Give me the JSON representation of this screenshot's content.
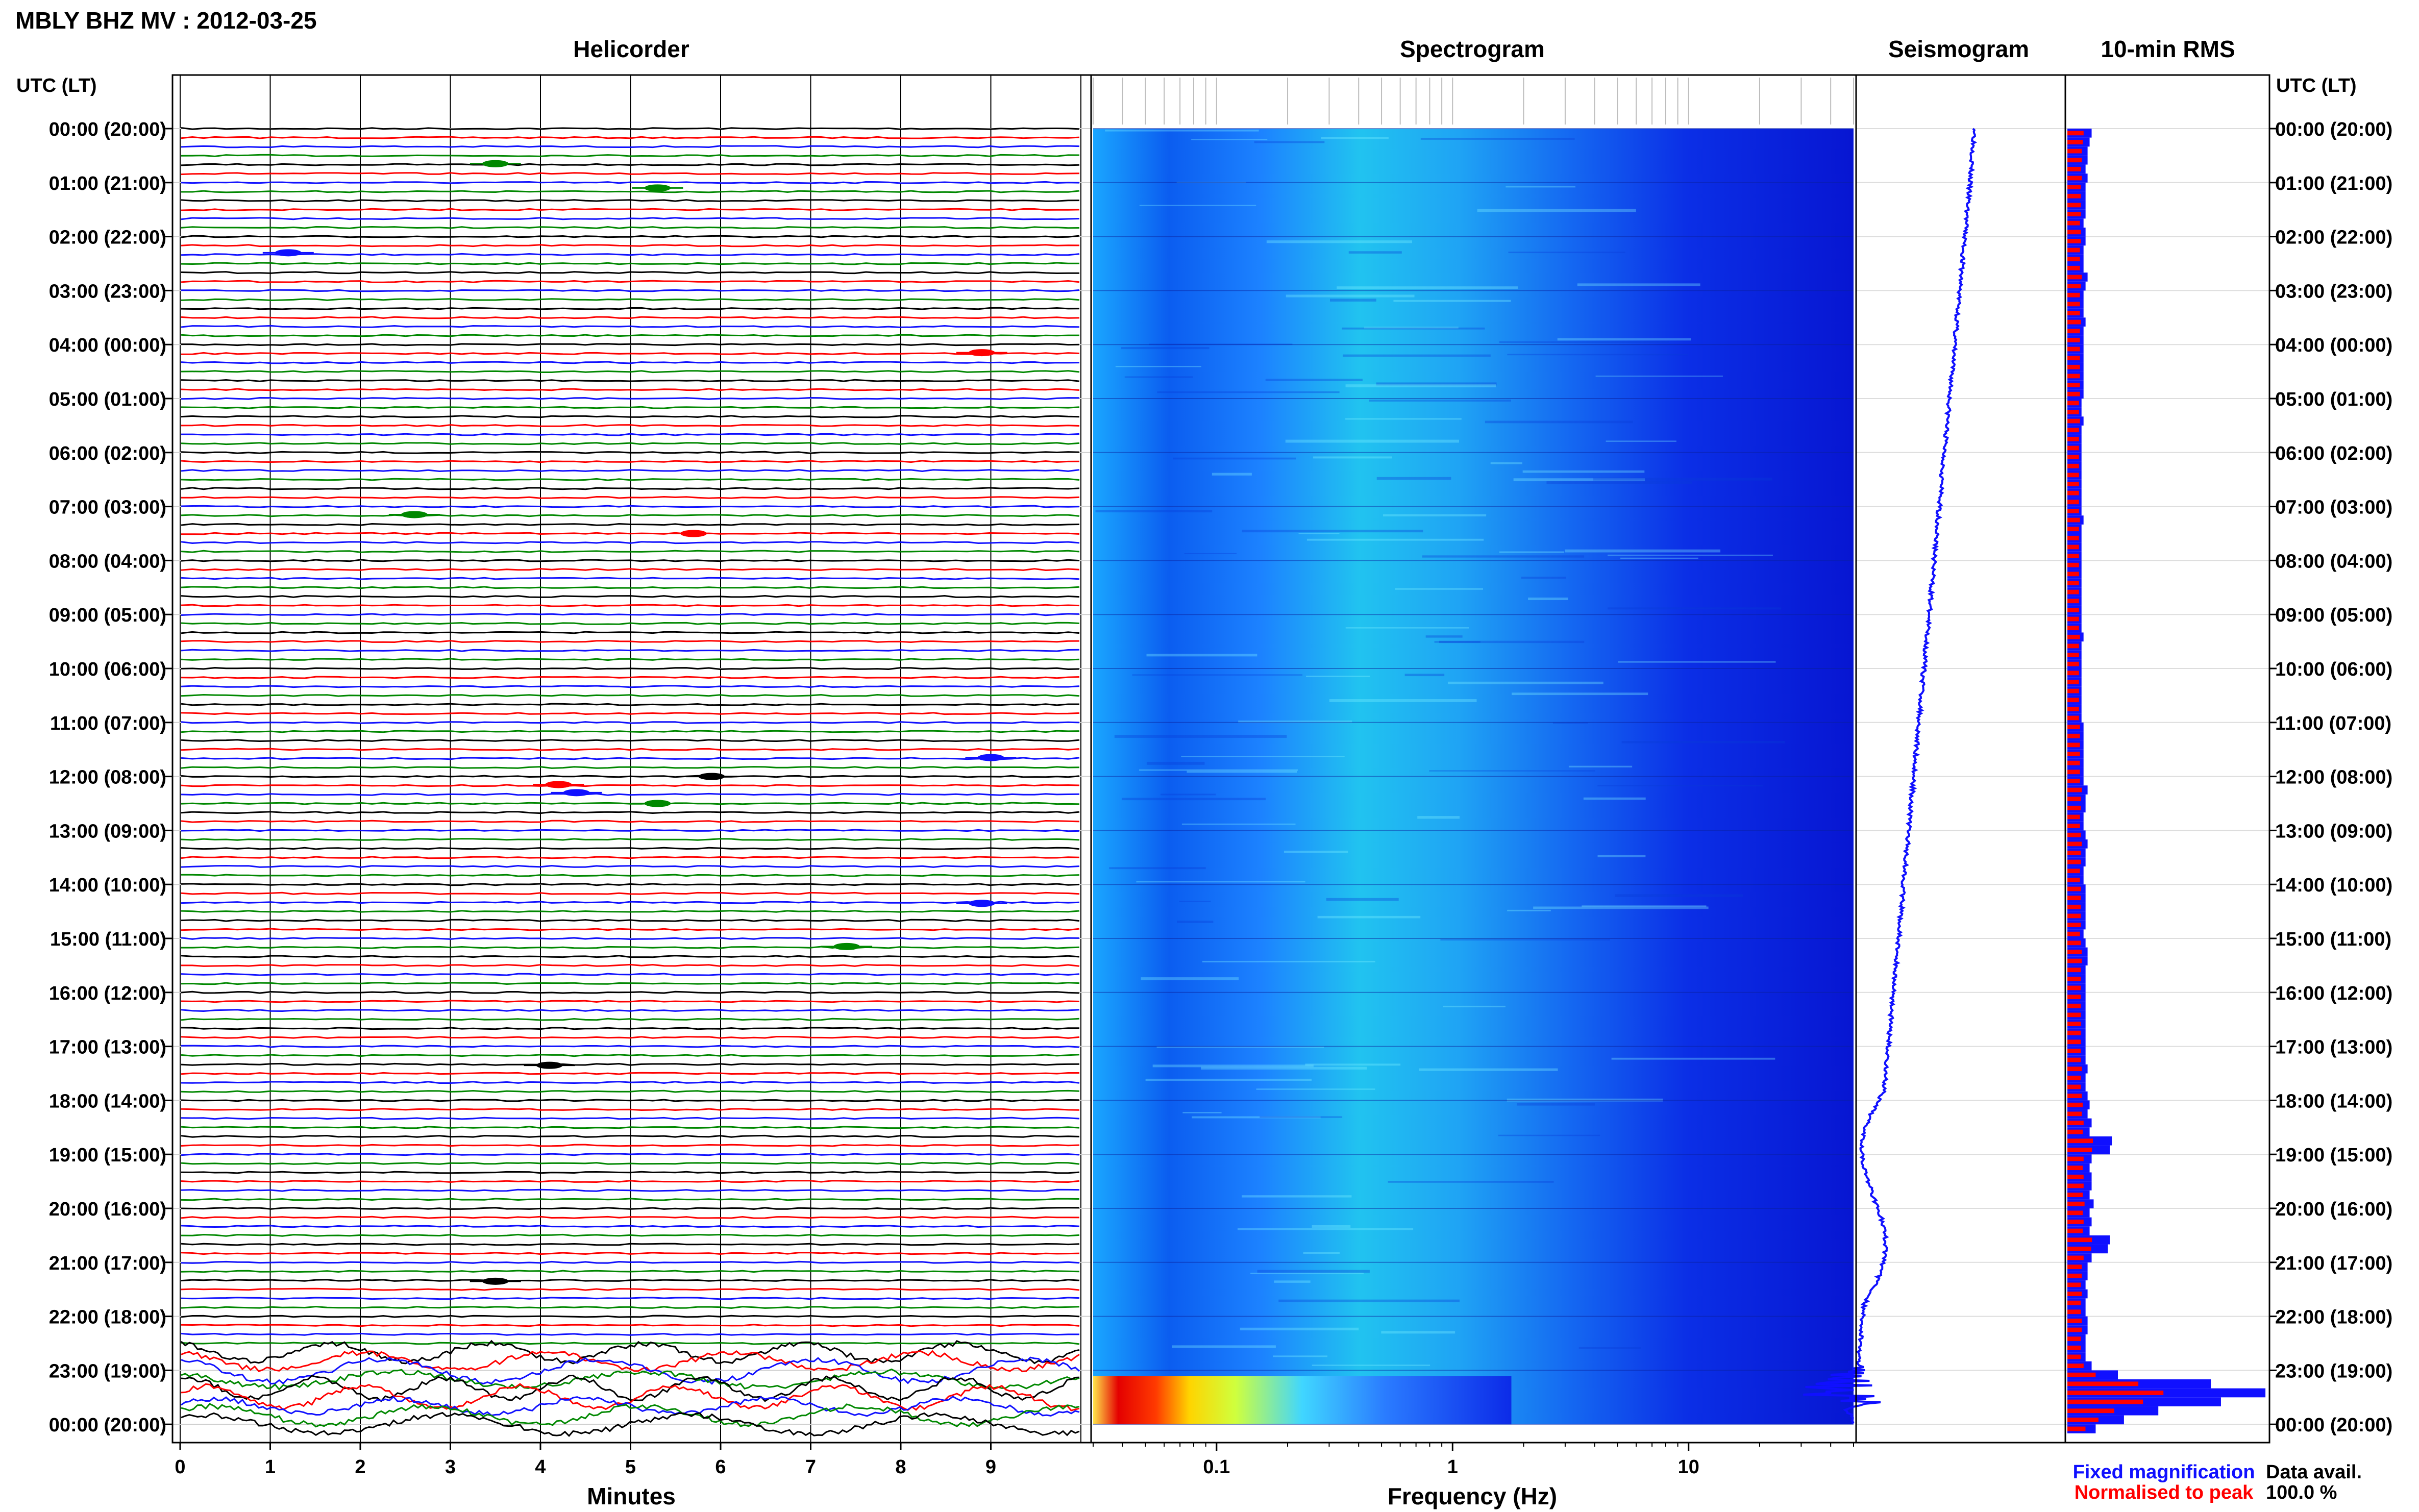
{
  "header": {
    "title": "MBLY BHZ MV : 2012-03-25",
    "utc_label_left": "UTC (LT)",
    "utc_label_right": "UTC (LT)"
  },
  "panels": {
    "helicorder": "Helicorder",
    "spectrogram": "Spectrogram",
    "seismogram": "Seismogram",
    "rms": "10-min RMS"
  },
  "time_labels": [
    "00:00 (20:00)",
    "01:00 (21:00)",
    "02:00 (22:00)",
    "03:00 (23:00)",
    "04:00 (00:00)",
    "05:00 (01:00)",
    "06:00 (02:00)",
    "07:00 (03:00)",
    "08:00 (04:00)",
    "09:00 (05:00)",
    "10:00 (06:00)",
    "11:00 (07:00)",
    "12:00 (08:00)",
    "13:00 (09:00)",
    "14:00 (10:00)",
    "15:00 (11:00)",
    "16:00 (12:00)",
    "17:00 (13:00)",
    "18:00 (14:00)",
    "19:00 (15:00)",
    "20:00 (16:00)",
    "21:00 (17:00)",
    "22:00 (18:00)",
    "23:00 (19:00)",
    "00:00 (20:00)"
  ],
  "legend": {
    "fixed": "Fixed magnification",
    "normalised": "Normalised to peak",
    "avail_label": "Data avail.",
    "avail_value": "100.0 %"
  },
  "colors": {
    "blue": "#1010ff",
    "red": "#ff0000",
    "green": "#008800",
    "black": "#000000"
  },
  "chart_data": [
    {
      "type": "line",
      "panel": "helicorder",
      "xlabel": "Minutes",
      "xticks": [
        0,
        1,
        2,
        3,
        4,
        5,
        6,
        7,
        8,
        9
      ],
      "xlim": [
        0,
        10
      ],
      "ylim_hours": [
        0,
        24
      ],
      "traces_per_hour": 6,
      "trace_colors": [
        "black",
        "red",
        "blue",
        "green"
      ],
      "events": [
        {
          "hour": 0.65,
          "minute": 3.5,
          "color": "green"
        },
        {
          "hour": 1.1,
          "minute": 5.3,
          "color": "green"
        },
        {
          "hour": 2.3,
          "minute": 1.2,
          "color": "blue"
        },
        {
          "hour": 4.15,
          "minute": 8.9,
          "color": "red"
        },
        {
          "hour": 7.15,
          "minute": 2.6,
          "color": "green"
        },
        {
          "hour": 7.5,
          "minute": 5.7,
          "color": "red"
        },
        {
          "hour": 11.65,
          "minute": 9.0,
          "color": "blue"
        },
        {
          "hour": 12.0,
          "minute": 5.9,
          "color": "black"
        },
        {
          "hour": 12.15,
          "minute": 4.2,
          "color": "red"
        },
        {
          "hour": 12.3,
          "minute": 4.4,
          "color": "blue"
        },
        {
          "hour": 12.5,
          "minute": 5.3,
          "color": "green"
        },
        {
          "hour": 14.35,
          "minute": 8.9,
          "color": "blue"
        },
        {
          "hour": 15.15,
          "minute": 7.4,
          "color": "green"
        },
        {
          "hour": 17.35,
          "minute": 4.1,
          "color": "black"
        },
        {
          "hour": 21.35,
          "minute": 3.5,
          "color": "black"
        }
      ],
      "noisy_from_hour": 22.6
    },
    {
      "type": "heatmap",
      "panel": "spectrogram",
      "xlabel": "Frequency (Hz)",
      "xscale": "log",
      "xticks": [
        0.1,
        1,
        10
      ],
      "xtick_labels": [
        "0.1",
        "1",
        "10"
      ],
      "xlim": [
        0.03,
        50
      ],
      "ylim_hours": [
        0,
        24
      ],
      "event_hour": 23.2
    },
    {
      "type": "line",
      "panel": "seismogram",
      "ylim_hours": [
        0,
        24
      ],
      "event_hour": 23.2
    },
    {
      "type": "bar",
      "panel": "rms",
      "ylim_hours": [
        0,
        24
      ],
      "bins_per_hour": 6,
      "series": [
        {
          "name": "Fixed magnification",
          "values": [
            0.12,
            0.11,
            0.1,
            0.1,
            0.09,
            0.1,
            0.09,
            0.09,
            0.09,
            0.09,
            0.08,
            0.09,
            0.09,
            0.08,
            0.08,
            0.08,
            0.1,
            0.09,
            0.08,
            0.08,
            0.08,
            0.09,
            0.08,
            0.08,
            0.08,
            0.08,
            0.08,
            0.08,
            0.08,
            0.08,
            0.07,
            0.07,
            0.08,
            0.07,
            0.07,
            0.07,
            0.07,
            0.07,
            0.07,
            0.07,
            0.07,
            0.07,
            0.07,
            0.08,
            0.07,
            0.07,
            0.07,
            0.07,
            0.07,
            0.07,
            0.07,
            0.07,
            0.07,
            0.07,
            0.07,
            0.07,
            0.08,
            0.07,
            0.07,
            0.07,
            0.07,
            0.07,
            0.07,
            0.07,
            0.07,
            0.07,
            0.08,
            0.08,
            0.08,
            0.08,
            0.08,
            0.08,
            0.08,
            0.1,
            0.09,
            0.09,
            0.08,
            0.08,
            0.09,
            0.1,
            0.09,
            0.09,
            0.08,
            0.08,
            0.09,
            0.09,
            0.09,
            0.09,
            0.09,
            0.08,
            0.09,
            0.1,
            0.1,
            0.09,
            0.09,
            0.09,
            0.09,
            0.09,
            0.09,
            0.09,
            0.09,
            0.09,
            0.09,
            0.09,
            0.1,
            0.09,
            0.09,
            0.1,
            0.11,
            0.1,
            0.12,
            0.11,
            0.22,
            0.21,
            0.12,
            0.11,
            0.12,
            0.12,
            0.11,
            0.13,
            0.11,
            0.12,
            0.11,
            0.21,
            0.2,
            0.12,
            0.1,
            0.1,
            0.09,
            0.1,
            0.09,
            0.09,
            0.1,
            0.1,
            0.09,
            0.09,
            0.09,
            0.12,
            0.25,
            0.71,
            0.98,
            0.76,
            0.45,
            0.28,
            0.14
          ]
        }
      ]
    }
  ]
}
